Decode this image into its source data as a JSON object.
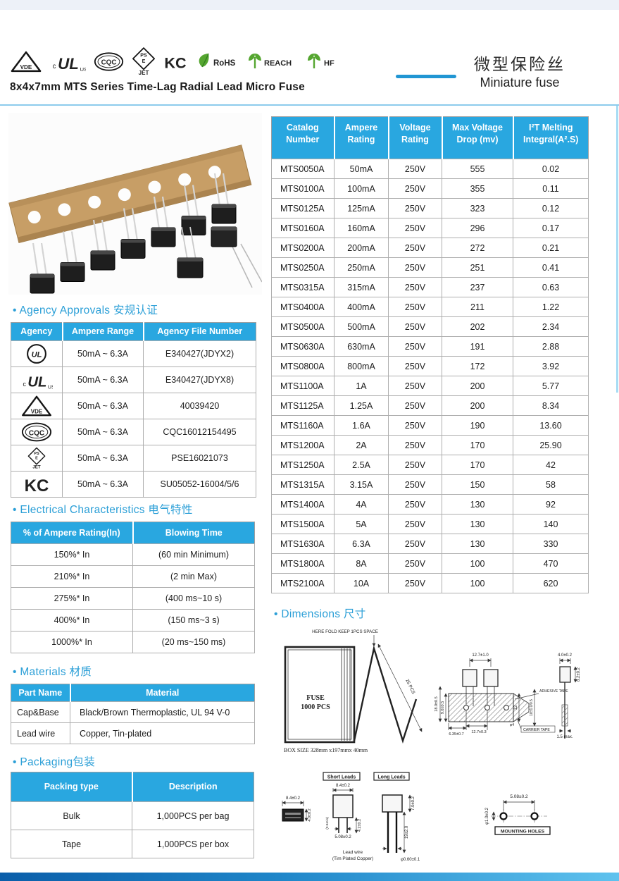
{
  "page": {
    "brand_cn": "微型保险丝",
    "brand_en": "Miniature fuse",
    "title": "8x4x7mm MTS Series Time-Lag Radial Lead Micro Fuse"
  },
  "colors": {
    "accent_blue": "#29a7e0",
    "heading_blue": "#2b9fd7",
    "divider_blue": "#8ccbec",
    "logo_green": "#4aa62e"
  },
  "logos": {
    "vde": "VDE",
    "cul_c": "c",
    "cul_ul": "UL",
    "cul_us": "US",
    "ul": "UL",
    "cqc": "CQC",
    "pse_top": "PS",
    "pse_mid": "E",
    "pse_bottom": "JET",
    "kc": "KC",
    "rohs": "RoHS",
    "reach": "REACH",
    "hf": "HF"
  },
  "spec_table": {
    "headers": [
      "Catalog Number",
      "Ampere Rating",
      "Voltage Rating",
      "Max Voltage Drop (mv)",
      "I²T Melting Integral(A².S)"
    ],
    "rows": [
      [
        "MTS0050A",
        "50mA",
        "250V",
        "555",
        "0.02"
      ],
      [
        "MTS0100A",
        "100mA",
        "250V",
        "355",
        "0.11"
      ],
      [
        "MTS0125A",
        "125mA",
        "250V",
        "323",
        "0.12"
      ],
      [
        "MTS0160A",
        "160mA",
        "250V",
        "296",
        "0.17"
      ],
      [
        "MTS0200A",
        "200mA",
        "250V",
        "272",
        "0.21"
      ],
      [
        "MTS0250A",
        "250mA",
        "250V",
        "251",
        "0.41"
      ],
      [
        "MTS0315A",
        "315mA",
        "250V",
        "237",
        "0.63"
      ],
      [
        "MTS0400A",
        "400mA",
        "250V",
        "211",
        "1.22"
      ],
      [
        "MTS0500A",
        "500mA",
        "250V",
        "202",
        "2.34"
      ],
      [
        "MTS0630A",
        "630mA",
        "250V",
        "191",
        "2.88"
      ],
      [
        "MTS0800A",
        "800mA",
        "250V",
        "172",
        "3.92"
      ],
      [
        "MTS1100A",
        "1A",
        "250V",
        "200",
        "5.77"
      ],
      [
        "MTS1125A",
        "1.25A",
        "250V",
        "200",
        "8.34"
      ],
      [
        "MTS1160A",
        "1.6A",
        "250V",
        "190",
        "13.60"
      ],
      [
        "MTS1200A",
        "2A",
        "250V",
        "170",
        "25.90"
      ],
      [
        "MTS1250A",
        "2.5A",
        "250V",
        "170",
        "42"
      ],
      [
        "MTS1315A",
        "3.15A",
        "250V",
        "150",
        "58"
      ],
      [
        "MTS1400A",
        "4A",
        "250V",
        "130",
        "92"
      ],
      [
        "MTS1500A",
        "5A",
        "250V",
        "130",
        "140"
      ],
      [
        "MTS1630A",
        "6.3A",
        "250V",
        "130",
        "330"
      ],
      [
        "MTS1800A",
        "8A",
        "250V",
        "100",
        "470"
      ],
      [
        "MTS2100A",
        "10A",
        "250V",
        "100",
        "620"
      ]
    ]
  },
  "agency": {
    "heading": "Agency Approvals 安规认证",
    "headers": [
      "Agency",
      "Ampere Range",
      "Agency File Number"
    ],
    "rows": [
      {
        "logo": "ul",
        "range": "50mA ~ 6.3A",
        "file": "E340427(JDYX2)"
      },
      {
        "logo": "cul",
        "range": "50mA ~ 6.3A",
        "file": "E340427(JDYX8)"
      },
      {
        "logo": "vde",
        "range": "50mA ~ 6.3A",
        "file": "40039420"
      },
      {
        "logo": "cqc",
        "range": "50mA ~ 6.3A",
        "file": "CQC16012154495"
      },
      {
        "logo": "pse",
        "range": "50mA ~ 6.3A",
        "file": "PSE16021073"
      },
      {
        "logo": "kc",
        "range": "50mA ~ 6.3A",
        "file": "SU05052-16004/5/6"
      }
    ]
  },
  "electrical": {
    "heading": "Electrical Characteristics 电气特性",
    "headers": [
      "% of Ampere Rating(In)",
      "Blowing Time"
    ],
    "rows": [
      [
        "150%* In",
        "(60 min Minimum)"
      ],
      [
        "210%* In",
        "(2 min Max)"
      ],
      [
        "275%* In",
        "(400 ms~10 s)"
      ],
      [
        "400%* In",
        "(150 ms~3 s)"
      ],
      [
        "1000%* In",
        "(20 ms~150 ms)"
      ]
    ]
  },
  "materials": {
    "heading": "Materials 材质",
    "headers": [
      "Part Name",
      "Material"
    ],
    "rows": [
      [
        "Cap&Base",
        "Black/Brown Thermoplastic, UL 94 V-0"
      ],
      [
        "Lead wire",
        "Copper, Tin-plated"
      ]
    ]
  },
  "packaging": {
    "heading": "Packaging包装",
    "headers": [
      "Packing type",
      "Description"
    ],
    "rows": [
      [
        "Bulk",
        "1,000PCS per bag"
      ],
      [
        "Tape",
        "1,000PCS per box"
      ]
    ]
  },
  "dimensions": {
    "heading": "Dimensions 尺寸",
    "fold_note": "HERE FOLD KEEP 1PCS SPACE",
    "fuse1": "FUSE",
    "fuse2": "1000 PCS",
    "pcs25": "25 PCS",
    "box_size": "BOX SIZE 328mm x197mmx 40mm",
    "tp_width": "12.7±1.0",
    "tp_18": "18.0±0.5",
    "tp_9": "9.0±0.5",
    "tp_12": "12",
    "tp_18b": "18±1.0/0.5",
    "adhesive": "ADHESIVE TAPE",
    "carrier": "CARRIER TAPE",
    "tp_635": "6.35±0.7",
    "tp_127": "12.7±0.3",
    "tp_phi4": "φ4",
    "sv_40": "4.0±0.2",
    "sv_82": "8.2±0.2",
    "sv_15": "1.5 max.",
    "lbl_short": "Short Leads",
    "lbl_long": "Long Leads",
    "side_84": "8.4±0.2",
    "side_40": "4.0±0.2",
    "sh_84": "8.4±0.2",
    "sh_05": "(0.5min)",
    "sh_508": "5.08±0.2",
    "sh_42": "4.2±0.2",
    "lg_70": "7.0±0.2",
    "lg_19": "19±2.0",
    "lg_phi": "φ0.60±0.1",
    "lead1": "Lead wire",
    "lead2": "(Tim Plated Copper)",
    "mh_508": "5.08±0.2",
    "mh_phi": "φ1.0±0.2",
    "mh_lbl": "MOUNTING HOLES"
  }
}
